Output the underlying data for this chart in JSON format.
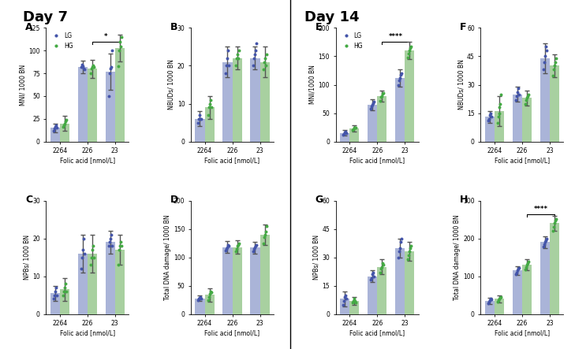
{
  "day7_title": "Day 7",
  "day14_title": "Day 14",
  "categories": [
    "2264",
    "226",
    "23"
  ],
  "bar_width": 0.35,
  "bar_color_LG": "#aab4d8",
  "bar_color_HG": "#a8d0a0",
  "dot_color_LG": "#4455aa",
  "dot_color_HG": "#44aa44",
  "panels": {
    "A": {
      "ylabel": "MNI/ 1000 BN",
      "ylim": [
        0,
        125
      ],
      "yticks": [
        0,
        25,
        50,
        75,
        100,
        125
      ],
      "sig_bracket": [
        1,
        2
      ],
      "sig_text": "*",
      "LG_mean": [
        15,
        82,
        77
      ],
      "LG_err": [
        5,
        7,
        20
      ],
      "LG_dots": [
        [
          12,
          14,
          16,
          18,
          15
        ],
        [
          82,
          85,
          83,
          80,
          79
        ],
        [
          50,
          75,
          80,
          82,
          100
        ]
      ],
      "HG_mean": [
        20,
        80,
        103
      ],
      "HG_err": [
        8,
        10,
        15
      ],
      "HG_dots": [
        [
          16,
          18,
          20,
          22,
          24
        ],
        [
          75,
          80,
          82,
          84,
          82
        ],
        [
          83,
          100,
          110,
          105,
          115
        ]
      ]
    },
    "B": {
      "ylabel": "NBUDs/ 1000 BN",
      "ylim": [
        0,
        30
      ],
      "yticks": [
        0,
        10,
        20,
        30
      ],
      "sig_bracket": null,
      "sig_text": null,
      "LG_mean": [
        6,
        21,
        22
      ],
      "LG_err": [
        2,
        4,
        3
      ],
      "LG_dots": [
        [
          5,
          6,
          7,
          6,
          6
        ],
        [
          18,
          20,
          22,
          24,
          20
        ],
        [
          20,
          22,
          23,
          24,
          26
        ]
      ],
      "HG_mean": [
        9,
        22,
        21
      ],
      "HG_err": [
        3,
        3,
        4
      ],
      "HG_dots": [
        [
          7,
          9,
          10,
          11,
          9
        ],
        [
          20,
          22,
          23,
          22,
          24
        ],
        [
          19,
          21,
          22,
          20,
          23
        ]
      ]
    },
    "C": {
      "ylabel": "NPBs/ 1000 BN",
      "ylim": [
        0,
        30
      ],
      "yticks": [
        0,
        10,
        20,
        30
      ],
      "sig_bracket": null,
      "sig_text": null,
      "LG_mean": [
        5.5,
        16,
        19
      ],
      "LG_err": [
        2,
        5,
        3
      ],
      "LG_dots": [
        [
          4,
          5,
          6,
          7,
          5
        ],
        [
          12,
          15,
          17,
          20,
          16
        ],
        [
          18,
          19,
          20,
          21,
          18
        ]
      ],
      "HG_mean": [
        6.5,
        16,
        17
      ],
      "HG_err": [
        3,
        5,
        4
      ],
      "HG_dots": [
        [
          5,
          6,
          7,
          8,
          6
        ],
        [
          13,
          15,
          17,
          18,
          15
        ],
        [
          13,
          17,
          18,
          19,
          18
        ]
      ]
    },
    "D": {
      "ylabel": "Total DNA damage/ 1000 BN",
      "ylim": [
        0,
        200
      ],
      "yticks": [
        0,
        50,
        100,
        150,
        200
      ],
      "sig_bracket": null,
      "sig_text": null,
      "LG_mean": [
        28,
        118,
        117
      ],
      "LG_err": [
        5,
        10,
        10
      ],
      "LG_dots": [
        [
          25,
          27,
          29,
          30,
          28
        ],
        [
          112,
          115,
          118,
          122,
          120
        ],
        [
          110,
          115,
          118,
          120,
          122
        ]
      ],
      "HG_mean": [
        34,
        118,
        140
      ],
      "HG_err": [
        12,
        12,
        18
      ],
      "HG_dots": [
        [
          25,
          30,
          35,
          40,
          38
        ],
        [
          110,
          115,
          120,
          122,
          125
        ],
        [
          125,
          135,
          140,
          145,
          155
        ]
      ]
    },
    "E": {
      "ylabel": "MNI/1000 BN",
      "ylim": [
        0,
        200
      ],
      "yticks": [
        0,
        50,
        100,
        150,
        200
      ],
      "sig_bracket": [
        1,
        2
      ],
      "sig_text": "****",
      "LG_mean": [
        15,
        65,
        112
      ],
      "LG_err": [
        5,
        10,
        15
      ],
      "LG_dots": [
        [
          12,
          14,
          16,
          17,
          15
        ],
        [
          58,
          62,
          65,
          68,
          70
        ],
        [
          100,
          108,
          112,
          118,
          120
        ]
      ],
      "HG_mean": [
        23,
        80,
        160
      ],
      "HG_err": [
        5,
        10,
        15
      ],
      "HG_dots": [
        [
          20,
          22,
          24,
          25,
          24
        ],
        [
          72,
          78,
          80,
          84,
          85
        ],
        [
          148,
          155,
          160,
          165,
          168
        ]
      ]
    },
    "F": {
      "ylabel": "NBUDs/ 1000 BN",
      "ylim": [
        0,
        60
      ],
      "yticks": [
        0,
        15,
        30,
        45,
        60
      ],
      "sig_bracket": null,
      "sig_text": null,
      "LG_mean": [
        13,
        25,
        44
      ],
      "LG_err": [
        3,
        4,
        8
      ],
      "LG_dots": [
        [
          11,
          12,
          14,
          15,
          13
        ],
        [
          22,
          24,
          26,
          28,
          25
        ],
        [
          38,
          42,
          45,
          50,
          48
        ]
      ],
      "HG_mean": [
        16,
        23,
        40
      ],
      "HG_err": [
        8,
        4,
        6
      ],
      "HG_dots": [
        [
          10,
          13,
          15,
          18,
          20,
          25
        ],
        [
          20,
          22,
          23,
          24,
          25
        ],
        [
          35,
          38,
          40,
          42,
          44
        ]
      ]
    },
    "G": {
      "ylabel": "NPBs/ 1000 BN",
      "ylim": [
        0,
        60
      ],
      "yticks": [
        0,
        15,
        30,
        45,
        60
      ],
      "sig_bracket": null,
      "sig_text": null,
      "LG_mean": [
        8,
        20,
        35
      ],
      "LG_err": [
        4,
        3,
        5
      ],
      "LG_dots": [
        [
          5,
          7,
          9,
          10,
          8
        ],
        [
          18,
          19,
          21,
          22,
          20
        ],
        [
          30,
          33,
          35,
          38,
          40
        ]
      ],
      "HG_mean": [
        7,
        25,
        33
      ],
      "HG_err": [
        2,
        4,
        5
      ],
      "HG_dots": [
        [
          6,
          7,
          8,
          7,
          6
        ],
        [
          22,
          24,
          25,
          27,
          26
        ],
        [
          29,
          31,
          33,
          35,
          36
        ]
      ]
    },
    "H": {
      "ylabel": "Total DNA damage/ 1000 BN",
      "ylim": [
        0,
        300
      ],
      "yticks": [
        0,
        100,
        200,
        300
      ],
      "sig_bracket": [
        1,
        2
      ],
      "sig_text": "****",
      "LG_mean": [
        35,
        115,
        190
      ],
      "LG_err": [
        8,
        12,
        15
      ],
      "LG_dots": [
        [
          28,
          32,
          36,
          40,
          38
        ],
        [
          105,
          110,
          115,
          120,
          122
        ],
        [
          178,
          185,
          190,
          195,
          200
        ]
      ],
      "HG_mean": [
        40,
        130,
        240
      ],
      "HG_err": [
        10,
        15,
        20
      ],
      "HG_dots": [
        [
          32,
          36,
          40,
          44,
          46
        ],
        [
          118,
          125,
          130,
          135,
          138
        ],
        [
          220,
          230,
          240,
          248,
          252
        ]
      ]
    }
  }
}
